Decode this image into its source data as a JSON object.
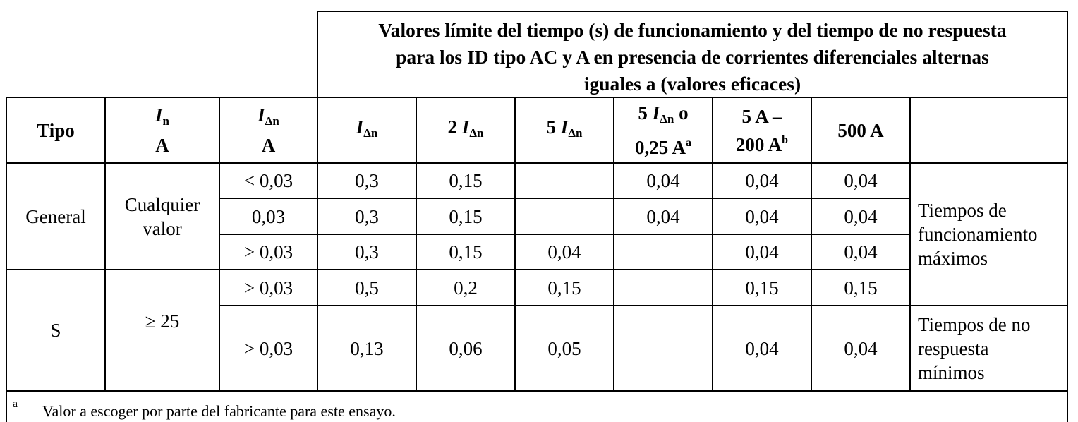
{
  "header": {
    "title_line1": "Valores límite del tiempo (s) de funcionamiento y del tiempo de no respuesta",
    "title_line2": "para los ID tipo AC y A en presencia de corrientes diferenciales alternas",
    "title_line3": "iguales a (valores eficaces)"
  },
  "columns": {
    "tipo": "Tipo",
    "in_symbol": "I",
    "in_sub": "n",
    "in_unit": "A",
    "idn_symbol": "I",
    "idn_sub": "Δn",
    "idn_unit": "A",
    "c1_symbol": "I",
    "c1_sub": "Δn",
    "c2_prefix": "2 ",
    "c2_symbol": "I",
    "c2_sub": "Δn",
    "c3_prefix": "5 ",
    "c3_symbol": "I",
    "c3_sub": "Δn",
    "c4_prefix": "5 ",
    "c4_symbol": "I",
    "c4_sub": "Δn",
    "c4_suffix": " o",
    "c4_line2": "0,25 A",
    "c4_sup": "a",
    "c5_line1": "5 A –",
    "c5_line2": "200 A",
    "c5_sup": "b",
    "c6": "500 A"
  },
  "groups": {
    "general_label": "General",
    "general_in_line1": "Cualquier",
    "general_in_line2": "valor",
    "s_label": "S",
    "s_in": "≥ 25"
  },
  "rows": [
    {
      "idn": "< 0,03",
      "c1": "0,3",
      "c2": "0,15",
      "c3": "",
      "c4": "0,04",
      "c5": "0,04",
      "c6": "0,04"
    },
    {
      "idn": "0,03",
      "c1": "0,3",
      "c2": "0,15",
      "c3": "",
      "c4": "0,04",
      "c5": "0,04",
      "c6": "0,04"
    },
    {
      "idn": "> 0,03",
      "c1": "0,3",
      "c2": "0,15",
      "c3": "0,04",
      "c4": "",
      "c5": "0,04",
      "c6": "0,04"
    },
    {
      "idn": "> 0,03",
      "c1": "0,5",
      "c2": "0,2",
      "c3": "0,15",
      "c4": "",
      "c5": "0,15",
      "c6": "0,15"
    },
    {
      "idn": "> 0,03",
      "c1": "0,13",
      "c2": "0,06",
      "c3": "0,05",
      "c4": "",
      "c5": "0,04",
      "c6": "0,04"
    }
  ],
  "remarks": {
    "max_line1": "Tiempos de",
    "max_line2": "funcionamiento",
    "max_line3": "máximos",
    "min_line1": "Tiempos de no",
    "min_line2": "respuesta",
    "min_line3": "mínimos"
  },
  "footnote": {
    "mark": "a",
    "text": "Valor a escoger por parte del fabricante para este ensayo."
  }
}
